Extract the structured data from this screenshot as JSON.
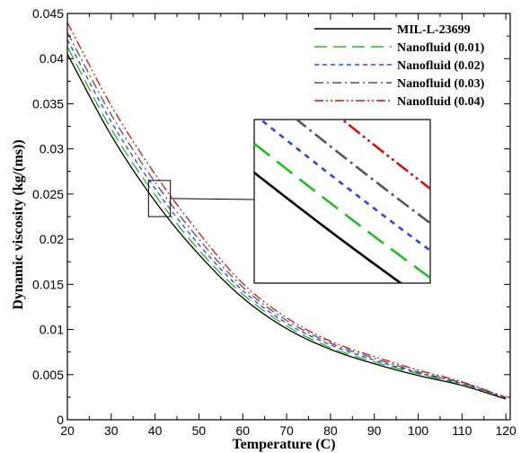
{
  "chart_data": {
    "type": "line",
    "xlabel": "Temperature (C)",
    "ylabel": "Dynamic viscosity (kg/(ms))",
    "xlim": [
      20,
      121
    ],
    "ylim": [
      0,
      0.045
    ],
    "x_ticks": [
      20,
      30,
      40,
      50,
      60,
      70,
      80,
      90,
      100,
      110,
      120
    ],
    "y_ticks": [
      0,
      0.005,
      0.01,
      0.015,
      0.02,
      0.025,
      0.03,
      0.035,
      0.04,
      0.045
    ],
    "y_tick_labels": [
      "0",
      "0.005",
      "0.01",
      "0.015",
      "0.02",
      "0.025",
      "0.03",
      "0.035",
      "0.04",
      "0.045"
    ],
    "grid": false,
    "legend_position": "top-right",
    "x": [
      20,
      30,
      40,
      50,
      60,
      70,
      80,
      90,
      100,
      110,
      120
    ],
    "series": [
      {
        "name": "MIL-L-23699",
        "color": "#000000",
        "dash": "solid",
        "values": [
          0.0405,
          0.0315,
          0.0242,
          0.0183,
          0.0135,
          0.0101,
          0.0078,
          0.0062,
          0.0049,
          0.0038,
          0.0023
        ]
      },
      {
        "name": "Nanofluid (0.01)",
        "color": "#22bb22",
        "dash": "long-dash",
        "values": [
          0.0413,
          0.0322,
          0.0249,
          0.0188,
          0.0139,
          0.0104,
          0.008,
          0.0064,
          0.0051,
          0.0039,
          0.0024
        ]
      },
      {
        "name": "Nanofluid (0.02)",
        "color": "#3344dd",
        "dash": "short-dash",
        "values": [
          0.0421,
          0.033,
          0.0256,
          0.0194,
          0.0143,
          0.0107,
          0.0083,
          0.0066,
          0.0052,
          0.004,
          0.0024
        ]
      },
      {
        "name": "Nanofluid (0.03)",
        "color": "#555555",
        "dash": "dash-dot",
        "values": [
          0.0429,
          0.0338,
          0.0263,
          0.02,
          0.0147,
          0.011,
          0.0085,
          0.0068,
          0.0053,
          0.0041,
          0.0025
        ]
      },
      {
        "name": "Nanofluid (0.04)",
        "color": "#cc1111",
        "dash": "dash-dot-dot",
        "values": [
          0.044,
          0.0348,
          0.0272,
          0.0207,
          0.0151,
          0.0113,
          0.0087,
          0.007,
          0.0055,
          0.0042,
          0.0025
        ]
      }
    ],
    "inset": {
      "shows": "zoomed view of the curves near 40 C",
      "xlim": [
        38.5,
        43.5
      ],
      "ylim": [
        0.0225,
        0.0265
      ]
    }
  }
}
